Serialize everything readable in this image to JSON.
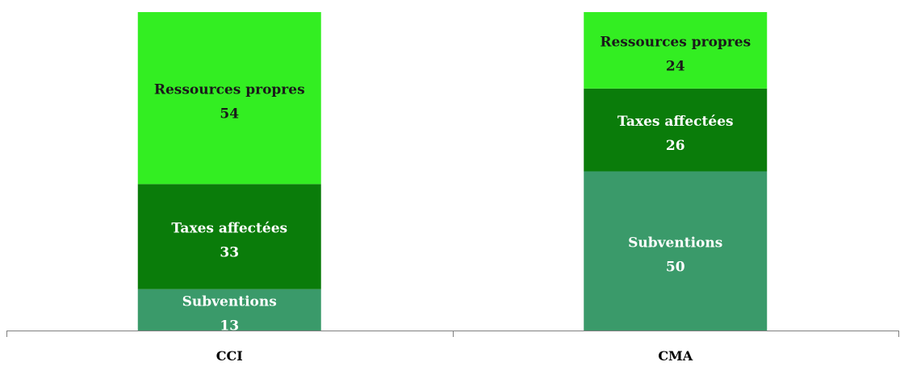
{
  "chart_data": {
    "type": "bar",
    "stacked": true,
    "categories": [
      "CCI",
      "CMA"
    ],
    "series": [
      {
        "name": "Subventions",
        "values": [
          13,
          50
        ],
        "color": "#3a9a6a",
        "label_color": "#ffffff"
      },
      {
        "name": "Taxes affectées",
        "values": [
          33,
          26
        ],
        "color": "#0a7c0a",
        "label_color": "#ffffff"
      },
      {
        "name": "Ressources propres",
        "values": [
          54,
          24
        ],
        "color": "#33ee22",
        "label_color": "#1a1a1a"
      }
    ],
    "ylim": [
      0,
      100
    ],
    "grid": false,
    "legend": "none"
  }
}
